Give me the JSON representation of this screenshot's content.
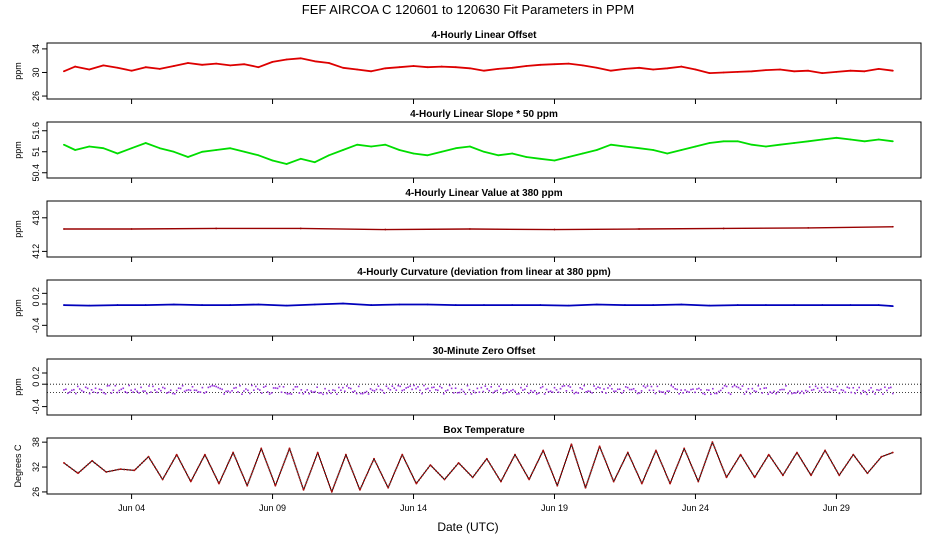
{
  "title": "FEF   AIRCOA C   120601 to 120630   Fit Parameters in PPM",
  "xlabel": "Date (UTC)",
  "x_ticks": [
    "Jun 04",
    "Jun 09",
    "Jun 14",
    "Jun 19",
    "Jun 24",
    "Jun 29"
  ],
  "colors": {
    "offset": "#dd0000",
    "slope": "#00dd00",
    "value": "#990000",
    "curvature": "#0000bb",
    "zero": "#9933dd",
    "temp_points": "#aa1111",
    "temp_line": "#000000"
  },
  "chart_data": [
    {
      "type": "line",
      "title": "4-Hourly Linear Offset",
      "ylabel": "ppm",
      "yticks": [
        "26",
        "30",
        "34"
      ],
      "ylim": [
        25.5,
        35
      ],
      "xlim": [
        1,
        32
      ],
      "series": [
        {
          "x": [
            1.6,
            2,
            2.5,
            3,
            3.5,
            4,
            4.5,
            5,
            5.5,
            6,
            6.5,
            7,
            7.5,
            8,
            8.5,
            9,
            9.5,
            10,
            10.5,
            11,
            11.5,
            12,
            12.5,
            13,
            13.5,
            14,
            14.5,
            15,
            15.5,
            16,
            16.5,
            17,
            17.5,
            18,
            18.5,
            19,
            19.5,
            20,
            20.5,
            21,
            21.5,
            22,
            22.5,
            23,
            23.5,
            24,
            24.5,
            25,
            25.5,
            26,
            26.5,
            27,
            27.5,
            28,
            28.5,
            29,
            29.5,
            30,
            30.5,
            31
          ],
          "values": [
            30.2,
            31.0,
            30.5,
            31.2,
            30.8,
            30.3,
            30.9,
            30.6,
            31.1,
            31.6,
            31.3,
            31.5,
            31.2,
            31.4,
            30.9,
            31.8,
            32.2,
            32.4,
            31.9,
            31.6,
            30.8,
            30.5,
            30.2,
            30.7,
            30.9,
            31.1,
            30.9,
            31.0,
            30.9,
            30.7,
            30.3,
            30.6,
            30.8,
            31.1,
            31.3,
            31.4,
            31.5,
            31.2,
            30.8,
            30.3,
            30.6,
            30.8,
            30.5,
            30.7,
            31.0,
            30.5,
            29.9,
            30.0,
            30.1,
            30.2,
            30.4,
            30.5,
            30.2,
            30.3,
            29.9,
            30.1,
            30.3,
            30.2,
            30.6,
            30.3
          ]
        }
      ]
    },
    {
      "type": "line",
      "title": "4-Hourly Linear Slope * 50 ppm",
      "ylabel": "ppm",
      "yticks": [
        "50.4",
        "51",
        "51.6"
      ],
      "ylim": [
        50.25,
        51.85
      ],
      "xlim": [
        1,
        32
      ],
      "series": [
        {
          "x": [
            1.6,
            2,
            2.5,
            3,
            3.5,
            4,
            4.5,
            5,
            5.5,
            6,
            6.5,
            7,
            7.5,
            8,
            8.5,
            9,
            9.5,
            10,
            10.5,
            11,
            11.5,
            12,
            12.5,
            13,
            13.5,
            14,
            14.5,
            15,
            15.5,
            16,
            16.5,
            17,
            17.5,
            18,
            18.5,
            19,
            19.5,
            20,
            20.5,
            21,
            21.5,
            22,
            22.5,
            23,
            23.5,
            24,
            24.5,
            25,
            25.5,
            26,
            26.5,
            27,
            27.5,
            28,
            28.5,
            29,
            29.5,
            30,
            30.5,
            31
          ],
          "values": [
            51.2,
            51.05,
            51.15,
            51.1,
            50.95,
            51.1,
            51.25,
            51.1,
            51.0,
            50.85,
            51.0,
            51.05,
            51.1,
            51.0,
            50.9,
            50.75,
            50.65,
            50.8,
            50.7,
            50.9,
            51.05,
            51.2,
            51.15,
            51.2,
            51.05,
            50.95,
            50.9,
            51.0,
            51.1,
            51.15,
            51.0,
            50.9,
            50.95,
            50.85,
            50.8,
            50.75,
            50.85,
            50.95,
            51.05,
            51.2,
            51.15,
            51.1,
            51.05,
            50.95,
            51.05,
            51.15,
            51.25,
            51.3,
            51.3,
            51.2,
            51.15,
            51.2,
            51.25,
            51.3,
            51.35,
            51.4,
            51.35,
            51.3,
            51.35,
            51.3
          ]
        }
      ]
    },
    {
      "type": "line",
      "title": "4-Hourly Linear Value at 380 ppm",
      "ylabel": "ppm",
      "yticks": [
        "412",
        "418"
      ],
      "ylim": [
        411,
        421
      ],
      "xlim": [
        1,
        32
      ],
      "series": [
        {
          "x": [
            1.6,
            4,
            7,
            10,
            13,
            16,
            19,
            22,
            25,
            28,
            31
          ],
          "values": [
            416.0,
            416.0,
            416.1,
            416.1,
            415.9,
            416.0,
            415.9,
            416.0,
            416.1,
            416.2,
            416.4
          ]
        }
      ]
    },
    {
      "type": "line",
      "title": "4-Hourly Curvature (deviation from linear at 380 ppm)",
      "ylabel": "ppm",
      "yticks": [
        "-0.4",
        "0",
        "0.2"
      ],
      "ylim": [
        -0.6,
        0.45
      ],
      "xlim": [
        1,
        32
      ],
      "series": [
        {
          "x": [
            1.6,
            2.5,
            3.5,
            4.5,
            5.5,
            6.5,
            7.5,
            8.5,
            9.5,
            10.5,
            11.5,
            12.5,
            13.5,
            14.5,
            15.5,
            16.5,
            17.5,
            18.5,
            19.5,
            20.5,
            21.5,
            22.5,
            23.5,
            24.5,
            25.5,
            26.5,
            27.5,
            28.5,
            29.5,
            30.5,
            31
          ],
          "values": [
            -0.02,
            -0.03,
            -0.02,
            -0.02,
            -0.01,
            -0.02,
            -0.02,
            -0.01,
            -0.03,
            -0.01,
            0.01,
            -0.02,
            -0.01,
            -0.01,
            -0.02,
            -0.02,
            -0.02,
            -0.02,
            -0.03,
            -0.01,
            -0.02,
            -0.02,
            -0.01,
            -0.03,
            -0.02,
            -0.02,
            -0.02,
            -0.02,
            -0.02,
            -0.02,
            -0.04
          ]
        }
      ]
    },
    {
      "type": "scatter",
      "title": "30-Minute Zero Offset",
      "ylabel": "ppm",
      "yticks": [
        "-0.4",
        "0",
        "0.2"
      ],
      "ylim": [
        -0.55,
        0.45
      ],
      "xlim": [
        1,
        32
      ],
      "reference_lines": [
        0.0,
        -0.15
      ],
      "series": [
        {
          "x": [
            1.6,
            31
          ],
          "values": [
            -0.1,
            -0.1
          ],
          "spread": 0.08
        }
      ]
    },
    {
      "type": "line",
      "title": "Box Temperature",
      "ylabel": "Degrees C",
      "yticks": [
        "26",
        "32",
        "38"
      ],
      "ylim": [
        25.5,
        39
      ],
      "xlim": [
        1,
        32
      ],
      "series": [
        {
          "x": [
            1.6,
            2.1,
            2.6,
            3.1,
            3.6,
            4.1,
            4.6,
            5.1,
            5.6,
            6.1,
            6.6,
            7.1,
            7.6,
            8.1,
            8.6,
            9.1,
            9.6,
            10.1,
            10.6,
            11.1,
            11.6,
            12.1,
            12.6,
            13.1,
            13.6,
            14.1,
            14.6,
            15.1,
            15.6,
            16.1,
            16.6,
            17.1,
            17.6,
            18.1,
            18.6,
            19.1,
            19.6,
            20.1,
            20.6,
            21.1,
            21.6,
            22.1,
            22.6,
            23.1,
            23.6,
            24.1,
            24.6,
            25.1,
            25.6,
            26.1,
            26.6,
            27.1,
            27.6,
            28.1,
            28.6,
            29.1,
            29.6,
            30.1,
            30.6,
            31.0
          ],
          "values": [
            33.0,
            30.5,
            33.5,
            30.8,
            31.5,
            31.2,
            34.5,
            29.0,
            35.0,
            28.5,
            35.0,
            28.0,
            35.5,
            27.5,
            36.5,
            27.5,
            36.5,
            26.5,
            35.5,
            26.0,
            35.0,
            26.5,
            34.0,
            27.0,
            35.0,
            28.0,
            32.5,
            29.0,
            33.0,
            29.5,
            34.0,
            28.5,
            35.0,
            29.0,
            36.0,
            27.5,
            37.5,
            27.0,
            37.0,
            28.5,
            35.5,
            28.0,
            36.0,
            28.0,
            36.5,
            28.5,
            38.0,
            29.5,
            35.0,
            29.5,
            35.0,
            30.0,
            35.5,
            30.0,
            36.0,
            30.0,
            35.0,
            30.5,
            34.5,
            35.5
          ]
        }
      ]
    }
  ]
}
